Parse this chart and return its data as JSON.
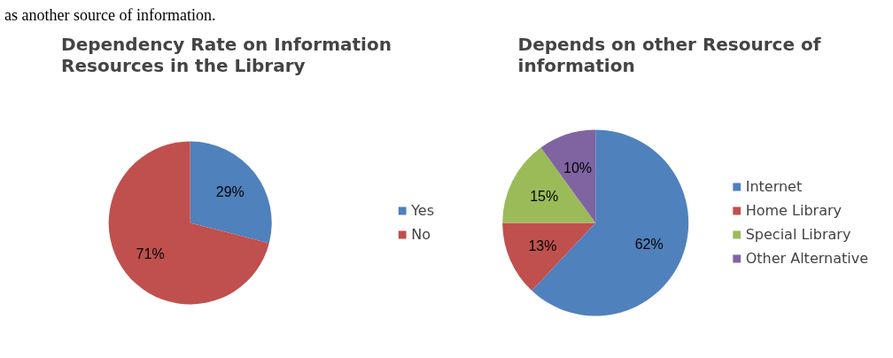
{
  "chart_data": [
    {
      "type": "pie",
      "title": "Dependency Rate on Information Resources in the Library",
      "categories": [
        "Yes",
        "No"
      ],
      "values": [
        29,
        71
      ],
      "value_labels": [
        "29%",
        "71%"
      ],
      "colors": [
        "#4f81bd",
        "#c0504d"
      ],
      "data_labels": true,
      "legend": "right",
      "annotations": [
        "as another source of information."
      ]
    },
    {
      "type": "pie",
      "title": "Depends on other Resource of information",
      "categories": [
        "Internet",
        "Home Library",
        "Special Library",
        "Other Alternative"
      ],
      "values": [
        62,
        13,
        15,
        10
      ],
      "value_labels": [
        "62%",
        "13%",
        "15%",
        "10%"
      ],
      "colors": [
        "#4f81bd",
        "#c0504d",
        "#9bbb59",
        "#8064a2"
      ],
      "data_labels": true,
      "legend": "right"
    }
  ]
}
